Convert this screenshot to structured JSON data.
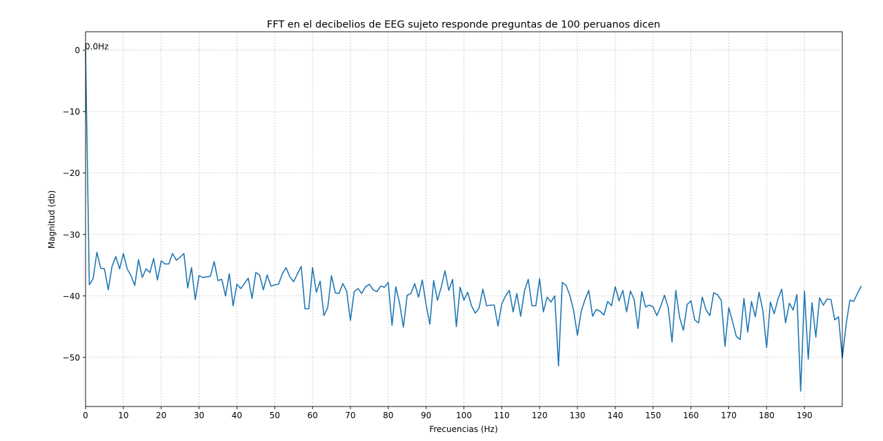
{
  "chart_data": {
    "type": "line",
    "title": "FFT en el decibelios de EEG sujeto responde preguntas de 100 peruanos dicen",
    "xlabel": "Frecuencias (Hz)",
    "ylabel": "Magnitud (db)",
    "xlim": [
      0,
      200
    ],
    "ylim": [
      -58,
      3
    ],
    "xticks": [
      0,
      10,
      20,
      30,
      40,
      50,
      60,
      70,
      80,
      90,
      100,
      110,
      120,
      130,
      140,
      150,
      160,
      170,
      180,
      190
    ],
    "xtick_labels": [
      "0",
      "10",
      "20",
      "30",
      "40",
      "50",
      "60",
      "70",
      "80",
      "90",
      "100",
      "110",
      "120",
      "130",
      "140",
      "150",
      "160",
      "170",
      "180",
      "190"
    ],
    "yticks": [
      0,
      -10,
      -20,
      -30,
      -40,
      -50
    ],
    "ytick_labels": [
      "0",
      "−10",
      "−20",
      "−30",
      "−40",
      "−50"
    ],
    "grid": true,
    "annotation": {
      "text": "0.0Hz",
      "x": 0,
      "y": 0
    },
    "series": [
      {
        "color": "#1f77b4",
        "x_start": 0,
        "x_step": 1,
        "values": [
          0.0,
          -38.2,
          -37.2,
          -32.9,
          -35.5,
          -35.6,
          -39.0,
          -35.2,
          -33.6,
          -35.6,
          -33.1,
          -35.6,
          -36.7,
          -38.3,
          -34.1,
          -37.0,
          -35.6,
          -36.2,
          -33.9,
          -37.4,
          -34.3,
          -34.8,
          -34.8,
          -33.1,
          -34.2,
          -33.7,
          -33.1,
          -38.7,
          -35.4,
          -40.6,
          -36.7,
          -37.0,
          -36.9,
          -36.8,
          -34.4,
          -37.5,
          -37.3,
          -40.0,
          -36.4,
          -41.6,
          -38.1,
          -38.8,
          -38.0,
          -37.1,
          -40.4,
          -36.2,
          -36.6,
          -39.0,
          -36.6,
          -38.4,
          -38.2,
          -38.1,
          -36.4,
          -35.4,
          -36.9,
          -37.7,
          -36.4,
          -35.2,
          -42.1,
          -42.1,
          -35.4,
          -39.4,
          -37.6,
          -43.2,
          -41.9,
          -36.7,
          -39.5,
          -39.6,
          -38.0,
          -39.2,
          -44.0,
          -39.3,
          -38.8,
          -39.6,
          -38.5,
          -38.1,
          -39.0,
          -39.3,
          -38.4,
          -38.6,
          -37.8,
          -44.8,
          -38.5,
          -41.2,
          -45.1,
          -39.9,
          -39.6,
          -38.0,
          -40.2,
          -37.4,
          -41.4,
          -44.6,
          -37.5,
          -40.7,
          -38.6,
          -35.9,
          -39.1,
          -37.3,
          -45.0,
          -38.6,
          -40.7,
          -39.4,
          -41.6,
          -42.8,
          -42.0,
          -38.9,
          -41.6,
          -41.5,
          -41.5,
          -44.9,
          -41.3,
          -40.0,
          -39.1,
          -42.6,
          -39.6,
          -43.3,
          -39.2,
          -37.3,
          -41.6,
          -41.6,
          -37.2,
          -42.6,
          -40.2,
          -41.0,
          -40.0,
          -51.4,
          -37.8,
          -38.3,
          -39.9,
          -42.4,
          -46.4,
          -42.5,
          -40.6,
          -39.1,
          -43.3,
          -42.2,
          -42.5,
          -43.1,
          -40.9,
          -41.6,
          -38.5,
          -40.8,
          -39.1,
          -42.6,
          -39.2,
          -40.6,
          -45.3,
          -39.3,
          -41.8,
          -41.5,
          -41.8,
          -43.2,
          -41.7,
          -39.9,
          -41.9,
          -47.5,
          -39.1,
          -43.5,
          -45.6,
          -41.4,
          -40.8,
          -43.9,
          -44.4,
          -40.2,
          -42.3,
          -43.2,
          -39.5,
          -39.8,
          -40.7,
          -48.2,
          -41.9,
          -44.2,
          -46.6,
          -47.1,
          -40.4,
          -45.9,
          -40.9,
          -43.4,
          -39.4,
          -42.4,
          -48.4,
          -41.0,
          -42.9,
          -40.5,
          -38.9,
          -44.4,
          -41.2,
          -42.3,
          -39.8,
          -55.5,
          -39.2,
          -50.3,
          -41.1,
          -46.7,
          -40.3,
          -41.5,
          -40.5,
          -40.6,
          -43.9,
          -43.4,
          -50.1,
          -44.7,
          -40.7,
          -40.9,
          -39.6,
          -38.4
        ]
      }
    ]
  }
}
